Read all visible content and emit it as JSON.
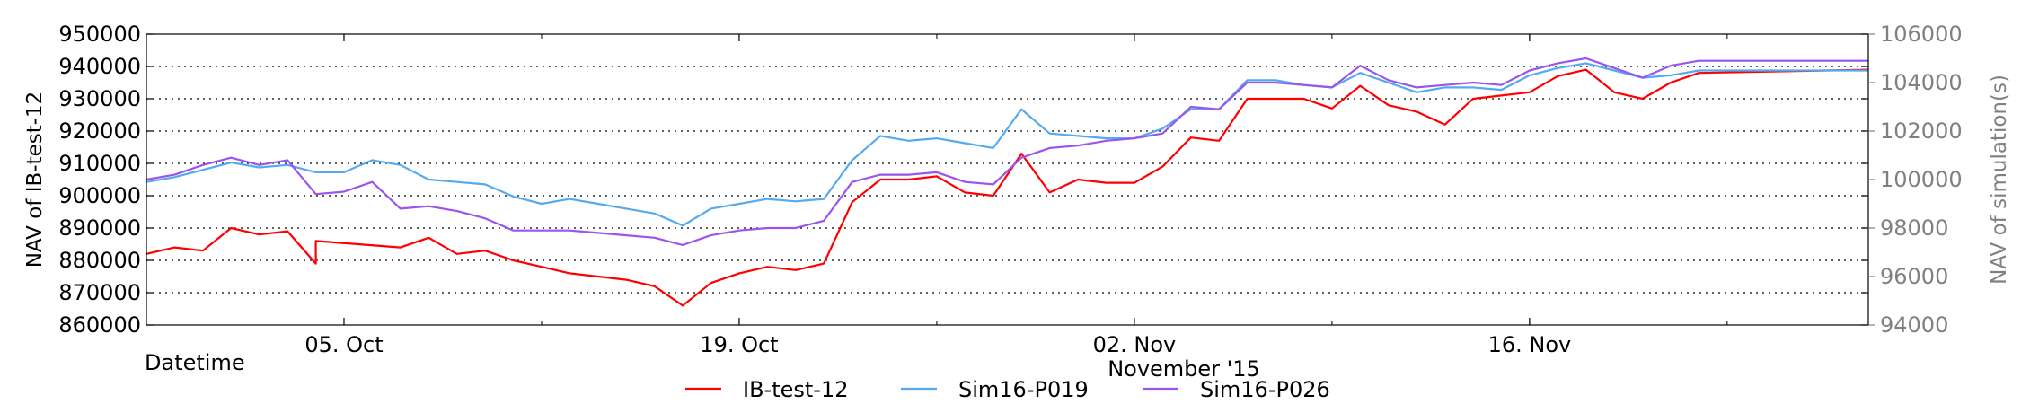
{
  "chart_data": {
    "type": "line",
    "xlabel": "Datetime",
    "x_sublabel": "November '15",
    "ylabel_left": "NAV of IB-test-12",
    "ylabel_right": "NAV of simulation(s)",
    "x_range": [
      "2015-09-28",
      "2015-11-28"
    ],
    "x_ticks": [
      {
        "date": "2015-10-05",
        "label": "05. Oct"
      },
      {
        "date": "2015-10-19",
        "label": "19. Oct"
      },
      {
        "date": "2015-11-02",
        "label": "02. Nov"
      },
      {
        "date": "2015-11-16",
        "label": "16. Nov"
      }
    ],
    "left_axis": {
      "min": 860000,
      "max": 950000,
      "ticks": [
        860000,
        870000,
        880000,
        890000,
        900000,
        910000,
        920000,
        930000,
        940000,
        950000
      ],
      "tick_labels": [
        "860000",
        "870000",
        "880000",
        "890000",
        "900000",
        "910000",
        "920000",
        "930000",
        "940000",
        "950000"
      ]
    },
    "right_axis": {
      "min": 94000,
      "max": 106000,
      "ticks": [
        94000,
        96000,
        98000,
        100000,
        102000,
        104000,
        106000
      ],
      "tick_labels": [
        "94000",
        "96000",
        "98000",
        "100000",
        "102000",
        "104000",
        "106000"
      ]
    },
    "grid": "horizontal dotted at left-axis ticks",
    "legend_position": "bottom-center",
    "series": [
      {
        "name": "IB-test-12",
        "color": "#ff0000",
        "axis": "left",
        "points": [
          [
            "2015-09-28",
            882000
          ],
          [
            "2015-09-29",
            884000
          ],
          [
            "2015-09-30",
            883000
          ],
          [
            "2015-10-01",
            890000
          ],
          [
            "2015-10-02",
            888000
          ],
          [
            "2015-10-03",
            889000
          ],
          [
            "2015-10-04",
            879000
          ],
          [
            "2015-10-04",
            886000
          ],
          [
            "2015-10-07",
            884000
          ],
          [
            "2015-10-08",
            887000
          ],
          [
            "2015-10-09",
            882000
          ],
          [
            "2015-10-10",
            883000
          ],
          [
            "2015-10-11",
            880000
          ],
          [
            "2015-10-12",
            878000
          ],
          [
            "2015-10-13",
            876000
          ],
          [
            "2015-10-14",
            875000
          ],
          [
            "2015-10-15",
            874000
          ],
          [
            "2015-10-16",
            872000
          ],
          [
            "2015-10-17",
            866000
          ],
          [
            "2015-10-18",
            873000
          ],
          [
            "2015-10-19",
            876000
          ],
          [
            "2015-10-20",
            878000
          ],
          [
            "2015-10-21",
            877000
          ],
          [
            "2015-10-22",
            879000
          ],
          [
            "2015-10-23",
            898000
          ],
          [
            "2015-10-24",
            905000
          ],
          [
            "2015-10-25",
            905000
          ],
          [
            "2015-10-26",
            906000
          ],
          [
            "2015-10-27",
            901000
          ],
          [
            "2015-10-28",
            900000
          ],
          [
            "2015-10-29",
            913000
          ],
          [
            "2015-10-30",
            901000
          ],
          [
            "2015-10-31",
            905000
          ],
          [
            "2015-11-01",
            904000
          ],
          [
            "2015-11-02",
            904000
          ],
          [
            "2015-11-03",
            909000
          ],
          [
            "2015-11-04",
            918000
          ],
          [
            "2015-11-05",
            917000
          ],
          [
            "2015-11-06",
            930000
          ],
          [
            "2015-11-07",
            930000
          ],
          [
            "2015-11-08",
            930000
          ],
          [
            "2015-11-09",
            927000
          ],
          [
            "2015-11-10",
            934000
          ],
          [
            "2015-11-11",
            928000
          ],
          [
            "2015-11-12",
            926000
          ],
          [
            "2015-11-13",
            922000
          ],
          [
            "2015-11-14",
            930000
          ],
          [
            "2015-11-15",
            931000
          ],
          [
            "2015-11-16",
            932000
          ],
          [
            "2015-11-17",
            937000
          ],
          [
            "2015-11-18",
            939000
          ],
          [
            "2015-11-19",
            932000
          ],
          [
            "2015-11-20",
            930000
          ],
          [
            "2015-11-21",
            935000
          ],
          [
            "2015-11-22",
            938000
          ],
          [
            "2015-11-28",
            939000
          ]
        ]
      },
      {
        "name": "Sim16-P019",
        "color": "#55aaee",
        "axis": "right",
        "points": [
          [
            "2015-09-28",
            99900
          ],
          [
            "2015-09-29",
            100100
          ],
          [
            "2015-09-30",
            100400
          ],
          [
            "2015-10-01",
            100700
          ],
          [
            "2015-10-02",
            100500
          ],
          [
            "2015-10-03",
            100600
          ],
          [
            "2015-10-04",
            100300
          ],
          [
            "2015-10-04",
            100300
          ],
          [
            "2015-10-05",
            100300
          ],
          [
            "2015-10-06",
            100800
          ],
          [
            "2015-10-07",
            100600
          ],
          [
            "2015-10-08",
            100000
          ],
          [
            "2015-10-09",
            99900
          ],
          [
            "2015-10-10",
            99800
          ],
          [
            "2015-10-11",
            99300
          ],
          [
            "2015-10-12",
            99000
          ],
          [
            "2015-10-13",
            99200
          ],
          [
            "2015-10-14",
            99000
          ],
          [
            "2015-10-15",
            98800
          ],
          [
            "2015-10-16",
            98600
          ],
          [
            "2015-10-17",
            98100
          ],
          [
            "2015-10-18",
            98800
          ],
          [
            "2015-10-19",
            99000
          ],
          [
            "2015-10-20",
            99200
          ],
          [
            "2015-10-21",
            99100
          ],
          [
            "2015-10-22",
            99200
          ],
          [
            "2015-10-23",
            100800
          ],
          [
            "2015-10-24",
            101800
          ],
          [
            "2015-10-25",
            101600
          ],
          [
            "2015-10-26",
            101700
          ],
          [
            "2015-10-27",
            101500
          ],
          [
            "2015-10-28",
            101300
          ],
          [
            "2015-10-29",
            102900
          ],
          [
            "2015-10-30",
            101900
          ],
          [
            "2015-10-31",
            101800
          ],
          [
            "2015-11-01",
            101700
          ],
          [
            "2015-11-02",
            101700
          ],
          [
            "2015-11-03",
            102100
          ],
          [
            "2015-11-04",
            102900
          ],
          [
            "2015-11-05",
            102900
          ],
          [
            "2015-11-06",
            104100
          ],
          [
            "2015-11-07",
            104100
          ],
          [
            "2015-11-08",
            103900
          ],
          [
            "2015-11-09",
            103800
          ],
          [
            "2015-11-10",
            104400
          ],
          [
            "2015-11-11",
            104000
          ],
          [
            "2015-11-12",
            103600
          ],
          [
            "2015-11-13",
            103800
          ],
          [
            "2015-11-14",
            103800
          ],
          [
            "2015-11-15",
            103700
          ],
          [
            "2015-11-16",
            104300
          ],
          [
            "2015-11-17",
            104600
          ],
          [
            "2015-11-18",
            104800
          ],
          [
            "2015-11-19",
            104500
          ],
          [
            "2015-11-20",
            104200
          ],
          [
            "2015-11-21",
            104300
          ],
          [
            "2015-11-22",
            104500
          ],
          [
            "2015-11-28",
            104500
          ]
        ]
      },
      {
        "name": "Sim16-P026",
        "color": "#9955ee",
        "axis": "right",
        "points": [
          [
            "2015-09-28",
            100000
          ],
          [
            "2015-09-29",
            100200
          ],
          [
            "2015-09-30",
            100600
          ],
          [
            "2015-10-01",
            100900
          ],
          [
            "2015-10-02",
            100600
          ],
          [
            "2015-10-03",
            100800
          ],
          [
            "2015-10-04",
            99400
          ],
          [
            "2015-10-05",
            99500
          ],
          [
            "2015-10-06",
            99900
          ],
          [
            "2015-10-07",
            98800
          ],
          [
            "2015-10-08",
            98900
          ],
          [
            "2015-10-09",
            98700
          ],
          [
            "2015-10-10",
            98400
          ],
          [
            "2015-10-11",
            97900
          ],
          [
            "2015-10-12",
            97900
          ],
          [
            "2015-10-13",
            97900
          ],
          [
            "2015-10-14",
            97800
          ],
          [
            "2015-10-15",
            97700
          ],
          [
            "2015-10-16",
            97600
          ],
          [
            "2015-10-17",
            97300
          ],
          [
            "2015-10-18",
            97700
          ],
          [
            "2015-10-19",
            97900
          ],
          [
            "2015-10-20",
            98000
          ],
          [
            "2015-10-21",
            98000
          ],
          [
            "2015-10-22",
            98300
          ],
          [
            "2015-10-23",
            99900
          ],
          [
            "2015-10-24",
            100200
          ],
          [
            "2015-10-25",
            100200
          ],
          [
            "2015-10-26",
            100300
          ],
          [
            "2015-10-27",
            99900
          ],
          [
            "2015-10-28",
            99800
          ],
          [
            "2015-10-29",
            100900
          ],
          [
            "2015-10-30",
            101300
          ],
          [
            "2015-10-31",
            101400
          ],
          [
            "2015-11-01",
            101600
          ],
          [
            "2015-11-02",
            101700
          ],
          [
            "2015-11-03",
            101900
          ],
          [
            "2015-11-04",
            103000
          ],
          [
            "2015-11-05",
            102900
          ],
          [
            "2015-11-06",
            104000
          ],
          [
            "2015-11-07",
            104000
          ],
          [
            "2015-11-08",
            103900
          ],
          [
            "2015-11-09",
            103800
          ],
          [
            "2015-11-10",
            104700
          ],
          [
            "2015-11-11",
            104100
          ],
          [
            "2015-11-12",
            103800
          ],
          [
            "2015-11-13",
            103900
          ],
          [
            "2015-11-14",
            104000
          ],
          [
            "2015-11-15",
            103900
          ],
          [
            "2015-11-16",
            104500
          ],
          [
            "2015-11-17",
            104800
          ],
          [
            "2015-11-18",
            105000
          ],
          [
            "2015-11-19",
            104600
          ],
          [
            "2015-11-20",
            104200
          ],
          [
            "2015-11-21",
            104700
          ],
          [
            "2015-11-22",
            104900
          ],
          [
            "2015-11-28",
            104900
          ]
        ]
      }
    ]
  }
}
